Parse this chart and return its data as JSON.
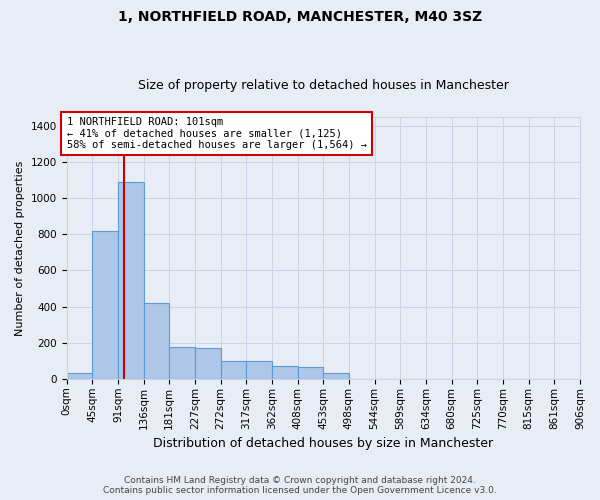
{
  "title1": "1, NORTHFIELD ROAD, MANCHESTER, M40 3SZ",
  "title2": "Size of property relative to detached houses in Manchester",
  "xlabel": "Distribution of detached houses by size in Manchester",
  "ylabel": "Number of detached properties",
  "bin_labels": [
    "0sqm",
    "45sqm",
    "91sqm",
    "136sqm",
    "181sqm",
    "227sqm",
    "272sqm",
    "317sqm",
    "362sqm",
    "408sqm",
    "453sqm",
    "498sqm",
    "544sqm",
    "589sqm",
    "634sqm",
    "680sqm",
    "725sqm",
    "770sqm",
    "815sqm",
    "861sqm",
    "906sqm"
  ],
  "bar_heights": [
    30,
    820,
    1090,
    420,
    175,
    170,
    100,
    100,
    70,
    65,
    30,
    0,
    0,
    0,
    0,
    0,
    0,
    0,
    0,
    0
  ],
  "bar_color": "#aec6e8",
  "bar_edge_color": "#5b9bd5",
  "property_line_x": 101,
  "annotation_line1": "1 NORTHFIELD ROAD: 101sqm",
  "annotation_line2": "← 41% of detached houses are smaller (1,125)",
  "annotation_line3": "58% of semi-detached houses are larger (1,564) →",
  "annotation_box_color": "#ffffff",
  "annotation_box_edge": "#cc0000",
  "vline_color": "#cc0000",
  "ylim": [
    0,
    1450
  ],
  "yticks": [
    0,
    200,
    400,
    600,
    800,
    1000,
    1200,
    1400
  ],
  "grid_color": "#c8d4e8",
  "bg_color": "#e8edf5",
  "footer1": "Contains HM Land Registry data © Crown copyright and database right 2024.",
  "footer2": "Contains public sector information licensed under the Open Government Licence v3.0.",
  "title1_fontsize": 10,
  "title2_fontsize": 9,
  "ylabel_fontsize": 8,
  "xlabel_fontsize": 9,
  "tick_fontsize": 7.5,
  "annotation_fontsize": 7.5
}
